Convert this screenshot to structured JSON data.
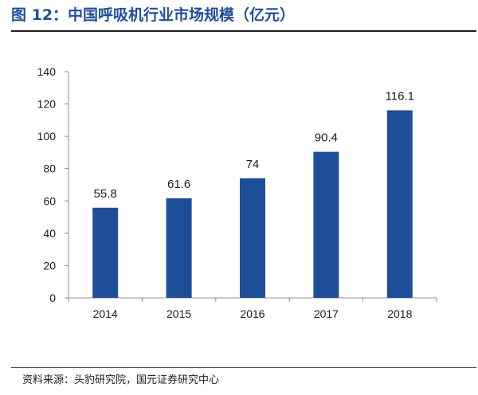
{
  "figure": {
    "title": "图 12：中国呼吸机行业市场规模（亿元）",
    "source": "资料来源：头豹研究院，国元证券研究中心"
  },
  "colors": {
    "bar": "#1f4e99",
    "title": "#1f4e99",
    "axis": "#8c8c8c"
  },
  "chart_data": {
    "type": "bar",
    "title": "图 12：中国呼吸机行业市场规模（亿元）",
    "xlabel": "",
    "ylabel": "",
    "categories": [
      "2014",
      "2015",
      "2016",
      "2017",
      "2018"
    ],
    "values": [
      55.8,
      61.6,
      74,
      90.4,
      116.1
    ],
    "data_labels": [
      "55.8",
      "61.6",
      "74",
      "90.4",
      "116.1"
    ],
    "ylim": [
      0,
      140
    ],
    "yticks": [
      0,
      20,
      40,
      60,
      80,
      100,
      120,
      140
    ],
    "grid": false,
    "legend": "none"
  }
}
